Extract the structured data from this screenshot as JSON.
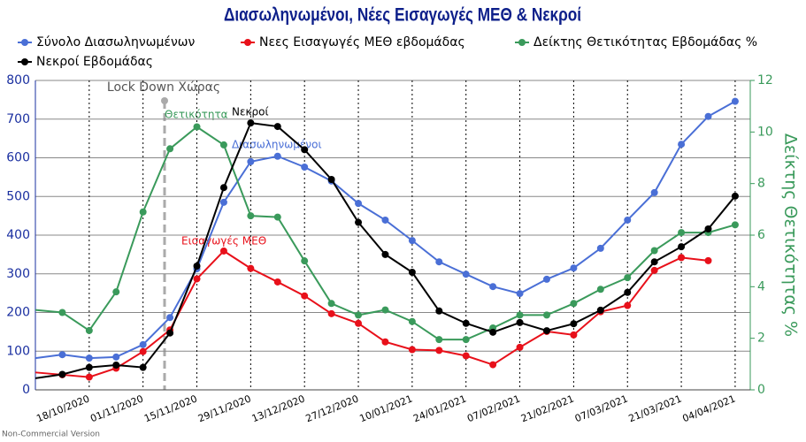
{
  "chart_data": {
    "type": "line",
    "title": "Διασωληνωμένοι, Νέες Εισαγωγές ΜΕΘ & Νεκροί",
    "y2_label": "Δείκτης Θετικότητας %",
    "categories": [
      null,
      null,
      "18/10/2020",
      null,
      "01/11/2020",
      null,
      "15/11/2020",
      null,
      "29/11/2020",
      null,
      "13/12/2020",
      null,
      "27/12/2020",
      null,
      "10/01/2021",
      null,
      "24/01/2021",
      null,
      "07/02/2021",
      null,
      "21/02/2021",
      null,
      "07/03/2021",
      null,
      "21/03/2021",
      null,
      "04/04/2021"
    ],
    "series": [
      {
        "name": "Σύνολο Διασωληνωμένων",
        "color": "#4a6fd6",
        "values": [
          82,
          91,
          82,
          85,
          117,
          187,
          313,
          485,
          590,
          604,
          576,
          540,
          482,
          439,
          386,
          331,
          299,
          267,
          249,
          286,
          315,
          366,
          439,
          510,
          635,
          707,
          746
        ]
      },
      {
        "name": "Νεες Εισαγωγές ΜΕΘ εβδομάδας",
        "color": "#e8101a",
        "values": [
          45,
          39,
          33,
          56,
          99,
          155,
          287,
          359,
          314,
          279,
          243,
          197,
          172,
          124,
          104,
          102,
          88,
          65,
          110,
          151,
          142,
          202,
          218,
          309,
          342,
          334,
          null
        ]
      },
      {
        "name": "Δείκτης Θετικότητας Εβδομάδας %",
        "color": "#3a9a5b",
        "axis": "y2",
        "values": [
          3.1,
          3.0,
          2.3,
          3.8,
          6.9,
          9.35,
          10.2,
          9.5,
          6.75,
          6.7,
          5.0,
          3.35,
          2.9,
          3.1,
          2.65,
          1.95,
          1.95,
          2.4,
          2.9,
          2.9,
          3.35,
          3.9,
          4.35,
          5.4,
          6.1,
          6.1,
          6.4
        ]
      },
      {
        "name": "Νεκροί Εβδομάδας",
        "color": "#000000",
        "values": [
          30,
          40,
          58,
          64,
          58,
          147,
          320,
          523,
          690,
          681,
          621,
          544,
          433,
          350,
          304,
          204,
          172,
          149,
          174,
          153,
          171,
          206,
          252,
          331,
          370,
          416,
          501
        ]
      }
    ],
    "ylim": [
      0,
      800
    ],
    "yticks": [
      0,
      100,
      200,
      300,
      400,
      500,
      600,
      700,
      800
    ],
    "y2lim": [
      0,
      12
    ],
    "y2ticks": [
      0,
      2,
      4,
      6,
      8,
      10,
      12
    ],
    "grid": true,
    "annotations": [
      "Lock Down Χώρας",
      "Θετικότητα",
      "Νεκροί",
      "Διασωληνωμένοι",
      "Εισαγωγές ΜΕΘ"
    ],
    "watermark": "Non-Commercial Version"
  }
}
